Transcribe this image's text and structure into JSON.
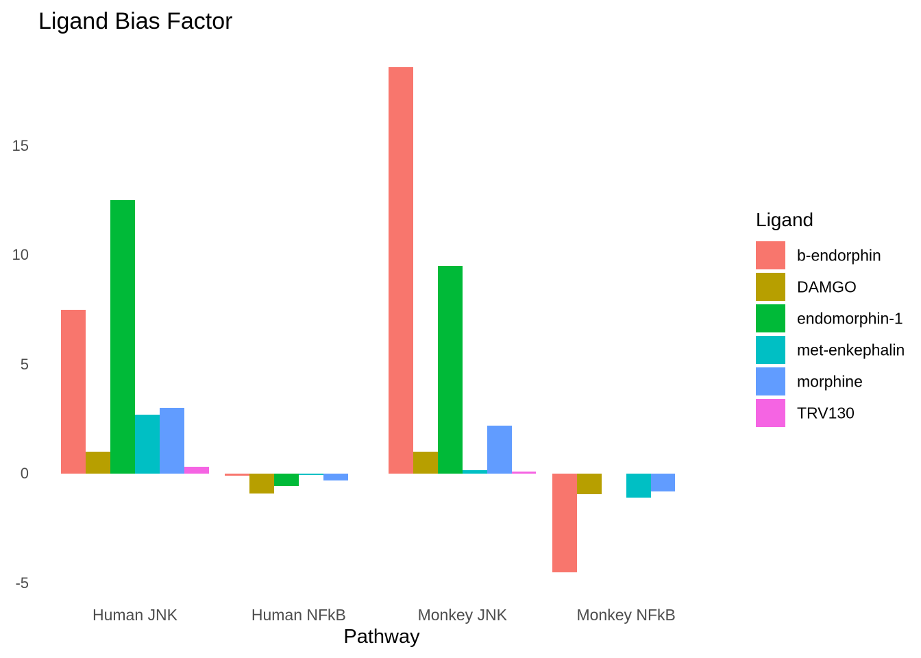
{
  "chart_data": {
    "type": "bar",
    "title": "Ligand Bias Factor",
    "xlabel": "Pathway",
    "ylabel": "",
    "categories": [
      "Human JNK",
      "Human NFkB",
      "Monkey JNK",
      "Monkey NFkB"
    ],
    "yticks": [
      15,
      10,
      5,
      0,
      -5
    ],
    "ylim": [
      -5,
      19
    ],
    "grid": false,
    "legend_title": "Ligand",
    "legend_position": "right",
    "series": [
      {
        "name": "b-endorphin",
        "color": "#F8766D",
        "values": [
          7.5,
          -0.1,
          18.6,
          -4.5
        ]
      },
      {
        "name": "DAMGO",
        "color": "#B79F00",
        "values": [
          1.0,
          -0.9,
          1.0,
          -0.95
        ]
      },
      {
        "name": "endomorphin-1",
        "color": "#00BA38",
        "values": [
          12.5,
          -0.55,
          9.5,
          0
        ]
      },
      {
        "name": "met-enkephalin",
        "color": "#00BFC4",
        "values": [
          2.7,
          -0.05,
          0.15,
          -1.1
        ]
      },
      {
        "name": "morphine",
        "color": "#619CFF",
        "values": [
          3.0,
          -0.3,
          2.2,
          -0.8
        ]
      },
      {
        "name": "TRV130",
        "color": "#F564E3",
        "values": [
          0.3,
          0,
          0.1,
          0
        ]
      }
    ]
  }
}
